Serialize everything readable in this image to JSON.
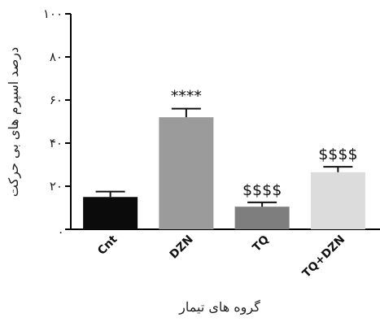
{
  "chart_data": {
    "type": "bar",
    "categories": [
      "Cnt",
      "DZN",
      "TQ",
      "TQ+DZN"
    ],
    "values": [
      15,
      52,
      10.5,
      26.5
    ],
    "errors": [
      2.5,
      4,
      2,
      2.5
    ],
    "annotations": [
      "",
      "****",
      "$$$$",
      "$$$$"
    ],
    "bar_colors": [
      "#0b0b0b",
      "#9b9b9b",
      "#7e7e7e",
      "#dcdcdc"
    ],
    "ylim": [
      0,
      100
    ],
    "yticks": [
      0,
      20,
      40,
      60,
      80,
      100
    ],
    "ytick_labels": [
      ".",
      "۲۰",
      "۴۰",
      "۶۰",
      "۸۰",
      "۱۰۰"
    ],
    "ylabel": "درصد اسپرم های بی حرکت",
    "xlabel": "گروه های تیمار",
    "grid": false,
    "legend": "none"
  }
}
